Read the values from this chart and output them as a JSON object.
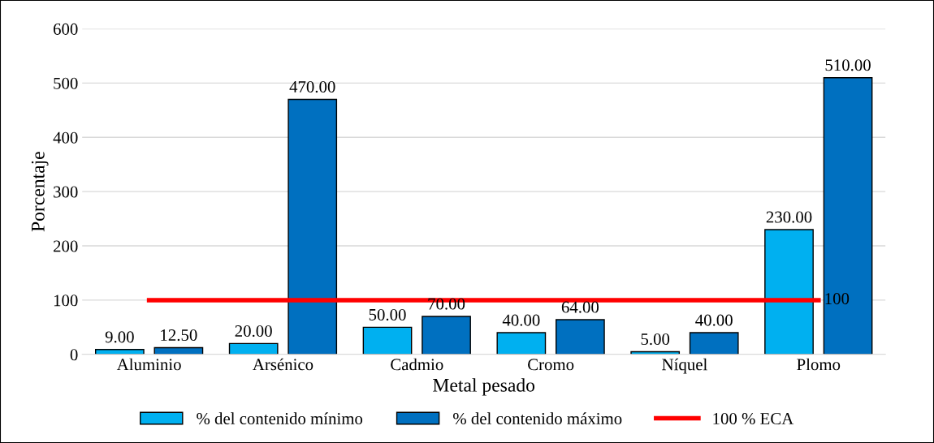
{
  "chart_data": {
    "type": "bar",
    "xlabel": "Metal pesado",
    "ylabel": "Porcentaje",
    "categories": [
      "Aluminio",
      "Arsénico",
      "Cadmio",
      "Cromo",
      "Níquel",
      "Plomo"
    ],
    "series": [
      {
        "name": "% del contenido mínimo",
        "color": "#00b0f0",
        "values": [
          9,
          20,
          50,
          40,
          5,
          230
        ],
        "value_labels": [
          "9.00",
          "20.00",
          "50.00",
          "40.00",
          "5.00",
          "230.00"
        ]
      },
      {
        "name": "% del contenido máximo",
        "color": "#0070c0",
        "values": [
          12.5,
          470,
          70,
          64,
          40,
          510
        ],
        "value_labels": [
          "12.50",
          "470.00",
          "70.00",
          "64.00",
          "40.00",
          "510.00"
        ]
      },
      {
        "name": "100 % ECA",
        "color": "#ff0000",
        "type": "line",
        "values": [
          100,
          100,
          100,
          100,
          100,
          100
        ],
        "value_labels": [
          null,
          null,
          null,
          null,
          null,
          "100"
        ]
      }
    ],
    "ylim": [
      0,
      600
    ],
    "yticks": [
      0,
      100,
      200,
      300,
      400,
      500,
      600
    ],
    "grid": "y",
    "legend": "bottom"
  }
}
